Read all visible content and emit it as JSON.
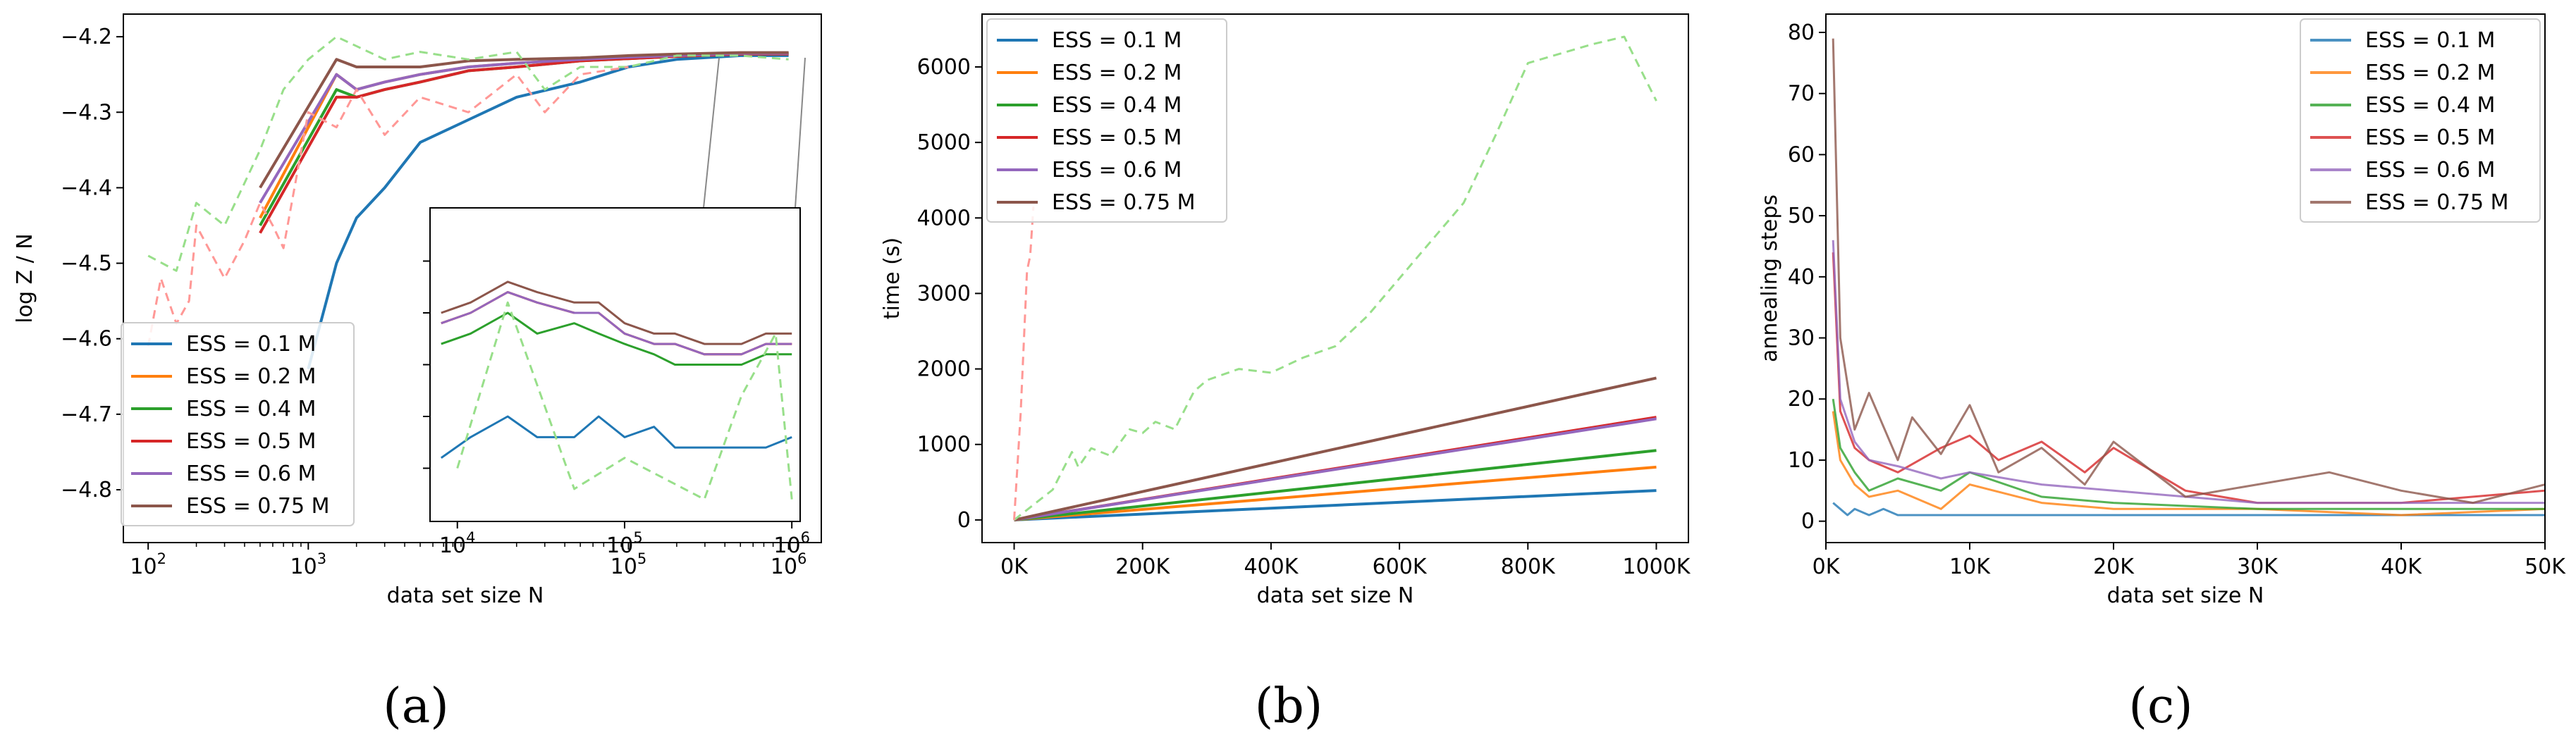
{
  "colors": {
    "c0.1": "#1f77b4",
    "c0.2": "#ff7f0e",
    "c0.4": "#2ca02c",
    "c0.5": "#d62728",
    "c0.6": "#9467bd",
    "c0.75": "#8c564b",
    "ref_green": "#98df8a",
    "ref_red": "#ff9896"
  },
  "legend_labels": [
    "ESS = 0.1 M",
    "ESS = 0.2 M",
    "ESS = 0.4 M",
    "ESS = 0.5 M",
    "ESS = 0.6 M",
    "ESS = 0.75 M"
  ],
  "captions": [
    "(a)",
    "(b)",
    "(c)"
  ],
  "chart_data": [
    {
      "panel": "(a)",
      "type": "line",
      "xscale": "log",
      "xlabel": "data set size N",
      "ylabel": "log Z / N",
      "xlim": [
        70,
        1600000
      ],
      "ylim": [
        -4.87,
        -4.17
      ],
      "yticks": [
        "−4.2",
        "−4.3",
        "−4.4",
        "−4.5",
        "−4.6",
        "−4.7",
        "−4.8"
      ],
      "xticks": [
        "10^2",
        "10^3",
        "10^5",
        "10^6"
      ],
      "legend_position": "lower-left",
      "series": [
        {
          "name": "ESS = 0.1 M",
          "x": [
            1000,
            1500,
            2000,
            3000,
            5000,
            10000,
            20000,
            50000,
            100000,
            200000,
            500000,
            1000000
          ],
          "y": [
            -4.64,
            -4.5,
            -4.44,
            -4.4,
            -4.34,
            -4.31,
            -4.28,
            -4.26,
            -4.24,
            -4.23,
            -4.225,
            -4.225
          ]
        },
        {
          "name": "ESS = 0.2 M",
          "x": [
            500,
            1500,
            2000,
            3000,
            5000,
            10000,
            20000,
            50000,
            100000,
            200000,
            500000,
            1000000
          ],
          "y": [
            -4.44,
            -4.25,
            -4.27,
            -4.26,
            -4.25,
            -4.24,
            -4.235,
            -4.23,
            -4.227,
            -4.225,
            -4.222,
            -4.222
          ]
        },
        {
          "name": "ESS = 0.4 M",
          "x": [
            500,
            1500,
            2000,
            3000,
            5000,
            10000,
            20000,
            50000,
            100000,
            200000,
            500000,
            1000000
          ],
          "y": [
            -4.45,
            -4.27,
            -4.28,
            -4.27,
            -4.26,
            -4.245,
            -4.24,
            -4.232,
            -4.229,
            -4.226,
            -4.223,
            -4.223
          ]
        },
        {
          "name": "ESS = 0.5 M",
          "x": [
            500,
            1500,
            2000,
            3000,
            5000,
            10000,
            20000,
            50000,
            100000,
            200000,
            500000,
            1000000
          ],
          "y": [
            -4.46,
            -4.28,
            -4.28,
            -4.27,
            -4.26,
            -4.245,
            -4.24,
            -4.232,
            -4.229,
            -4.226,
            -4.223,
            -4.223
          ]
        },
        {
          "name": "ESS = 0.6 M",
          "x": [
            500,
            1500,
            2000,
            3000,
            5000,
            10000,
            20000,
            50000,
            100000,
            200000,
            500000,
            1000000
          ],
          "y": [
            -4.42,
            -4.25,
            -4.27,
            -4.26,
            -4.25,
            -4.24,
            -4.235,
            -4.23,
            -4.227,
            -4.225,
            -4.222,
            -4.222
          ]
        },
        {
          "name": "ESS = 0.75 M",
          "x": [
            500,
            1500,
            2000,
            3000,
            5000,
            10000,
            20000,
            50000,
            100000,
            200000,
            500000,
            1000000
          ],
          "y": [
            -4.4,
            -4.23,
            -4.24,
            -4.24,
            -4.24,
            -4.232,
            -4.23,
            -4.228,
            -4.225,
            -4.223,
            -4.221,
            -4.221
          ]
        },
        {
          "name": "reference (green, dashed)",
          "x": [
            100,
            150,
            200,
            300,
            500,
            700,
            1000,
            1500,
            3000,
            5000,
            10000,
            20000,
            30000,
            50000,
            100000,
            200000,
            500000,
            1000000
          ],
          "y": [
            -4.49,
            -4.51,
            -4.42,
            -4.45,
            -4.35,
            -4.27,
            -4.23,
            -4.2,
            -4.23,
            -4.22,
            -4.23,
            -4.22,
            -4.27,
            -4.24,
            -4.24,
            -4.225,
            -4.225,
            -4.23
          ]
        },
        {
          "name": "reference (red, dashed)",
          "x": [
            100,
            120,
            150,
            180,
            200,
            300,
            400,
            500,
            600,
            700,
            1000,
            1500,
            2000,
            3000,
            5000,
            10000,
            20000,
            30000,
            50000,
            100000
          ],
          "y": [
            -4.61,
            -4.52,
            -4.58,
            -4.55,
            -4.45,
            -4.52,
            -4.47,
            -4.42,
            -4.45,
            -4.48,
            -4.3,
            -4.32,
            -4.27,
            -4.33,
            -4.28,
            -4.3,
            -4.25,
            -4.3,
            -4.25,
            -4.24
          ]
        }
      ],
      "inset": {
        "xscale": "log",
        "xlim": [
          7000,
          1100000
        ],
        "ylim": [
          -4.245,
          -4.215
        ],
        "xticks": [
          "10^4",
          "10^5",
          "10^6"
        ],
        "series": [
          {
            "name": "ESS = 0.1 M",
            "x": [
              8000,
              12000,
              20000,
              30000,
              50000,
              70000,
              100000,
              150000,
              200000,
              300000,
              500000,
              700000,
              1000000
            ],
            "y": [
              -4.239,
              -4.237,
              -4.235,
              -4.237,
              -4.237,
              -4.235,
              -4.237,
              -4.236,
              -4.238,
              -4.238,
              -4.238,
              -4.238,
              -4.237
            ]
          },
          {
            "name": "ESS = 0.2 M",
            "x": [
              8000,
              12000,
              20000,
              30000,
              50000,
              70000,
              100000,
              150000,
              200000,
              300000,
              500000,
              700000,
              1000000
            ],
            "y": [
              -4.226,
              -4.225,
              -4.223,
              -4.224,
              -4.225,
              -4.225,
              -4.227,
              -4.228,
              -4.228,
              -4.229,
              -4.229,
              -4.228,
              -4.228
            ]
          },
          {
            "name": "ESS = 0.4 M",
            "x": [
              8000,
              12000,
              20000,
              30000,
              50000,
              70000,
              100000,
              150000,
              200000,
              300000,
              500000,
              700000,
              1000000
            ],
            "y": [
              -4.228,
              -4.227,
              -4.225,
              -4.227,
              -4.226,
              -4.227,
              -4.228,
              -4.229,
              -4.23,
              -4.23,
              -4.23,
              -4.229,
              -4.229
            ]
          },
          {
            "name": "ESS = 0.5 M",
            "x": [
              8000,
              12000,
              20000,
              30000,
              50000,
              70000,
              100000,
              150000,
              200000,
              300000,
              500000,
              700000,
              1000000
            ],
            "y": [
              -4.226,
              -4.225,
              -4.223,
              -4.224,
              -4.225,
              -4.225,
              -4.227,
              -4.228,
              -4.228,
              -4.229,
              -4.229,
              -4.228,
              -4.228
            ]
          },
          {
            "name": "ESS = 0.6 M",
            "x": [
              8000,
              12000,
              20000,
              30000,
              50000,
              70000,
              100000,
              150000,
              200000,
              300000,
              500000,
              700000,
              1000000
            ],
            "y": [
              -4.226,
              -4.225,
              -4.223,
              -4.224,
              -4.225,
              -4.225,
              -4.227,
              -4.228,
              -4.228,
              -4.229,
              -4.229,
              -4.228,
              -4.228
            ]
          },
          {
            "name": "ESS = 0.75 M",
            "x": [
              8000,
              12000,
              20000,
              30000,
              50000,
              70000,
              100000,
              150000,
              200000,
              300000,
              500000,
              700000,
              1000000
            ],
            "y": [
              -4.225,
              -4.224,
              -4.222,
              -4.223,
              -4.224,
              -4.224,
              -4.226,
              -4.227,
              -4.227,
              -4.228,
              -4.228,
              -4.227,
              -4.227
            ]
          },
          {
            "name": "reference (green, dashed)",
            "x": [
              10000,
              20000,
              50000,
              100000,
              300000,
              500000,
              800000,
              1000000
            ],
            "y": [
              -4.24,
              -4.224,
              -4.242,
              -4.239,
              -4.243,
              -4.233,
              -4.227,
              -4.243
            ]
          }
        ]
      }
    },
    {
      "panel": "(b)",
      "type": "line",
      "xlabel": "data set size N",
      "ylabel": "time (s)",
      "xlim": [
        -50000,
        1050000
      ],
      "ylim": [
        -300,
        6700
      ],
      "xticks": [
        "0K",
        "200K",
        "400K",
        "600K",
        "800K",
        "1000K"
      ],
      "yticks": [
        "0",
        "1000",
        "2000",
        "3000",
        "4000",
        "5000",
        "6000"
      ],
      "legend_position": "upper-left",
      "series": [
        {
          "name": "ESS = 0.1 M",
          "x": [
            0,
            1000000
          ],
          "y": [
            0,
            390
          ]
        },
        {
          "name": "ESS = 0.2 M",
          "x": [
            0,
            1000000
          ],
          "y": [
            0,
            700
          ]
        },
        {
          "name": "ESS = 0.4 M",
          "x": [
            0,
            1000000
          ],
          "y": [
            0,
            920
          ]
        },
        {
          "name": "ESS = 0.5 M",
          "x": [
            0,
            1000000
          ],
          "y": [
            0,
            1360
          ]
        },
        {
          "name": "ESS = 0.6 M",
          "x": [
            0,
            1000000
          ],
          "y": [
            0,
            1340
          ]
        },
        {
          "name": "ESS = 0.75 M",
          "x": [
            0,
            1000000
          ],
          "y": [
            0,
            1880
          ]
        },
        {
          "name": "reference (green, dashed)",
          "x": [
            0,
            30000,
            60000,
            90000,
            100000,
            120000,
            150000,
            180000,
            200000,
            220000,
            250000,
            280000,
            300000,
            350000,
            400000,
            450000,
            500000,
            550000,
            600000,
            650000,
            700000,
            750000,
            800000,
            900000,
            950000,
            1000000
          ],
          "y": [
            0,
            200,
            400,
            900,
            700,
            950,
            850,
            1200,
            1150,
            1300,
            1200,
            1700,
            1850,
            2000,
            1950,
            2150,
            2300,
            2700,
            3200,
            3700,
            4200,
            5100,
            6050,
            6300,
            6400,
            5550
          ]
        },
        {
          "name": "reference (red, dashed)",
          "x": [
            0,
            10000,
            20000,
            25000,
            30000
          ],
          "y": [
            0,
            1400,
            3300,
            3500,
            4150
          ]
        }
      ]
    },
    {
      "panel": "(c)",
      "type": "line",
      "xlabel": "data set size N",
      "ylabel": "annealing steps",
      "xlim": [
        0,
        50000
      ],
      "ylim": [
        -3.5,
        83
      ],
      "xticks": [
        "0K",
        "10K",
        "20K",
        "30K",
        "40K",
        "50K"
      ],
      "yticks": [
        "0",
        "10",
        "20",
        "30",
        "40",
        "50",
        "60",
        "70",
        "80"
      ],
      "legend_position": "upper-right",
      "series": [
        {
          "name": "ESS = 0.1 M",
          "x": [
            500,
            1000,
            1500,
            2000,
            3000,
            4000,
            5000,
            50000
          ],
          "y": [
            3,
            2,
            1,
            2,
            1,
            2,
            1,
            1
          ]
        },
        {
          "name": "ESS = 0.2 M",
          "x": [
            500,
            1000,
            2000,
            3000,
            5000,
            8000,
            10000,
            15000,
            20000,
            30000,
            40000,
            50000
          ],
          "y": [
            18,
            10,
            6,
            4,
            5,
            2,
            6,
            3,
            2,
            2,
            1,
            2
          ]
        },
        {
          "name": "ESS = 0.4 M",
          "x": [
            500,
            1000,
            2000,
            3000,
            5000,
            8000,
            10000,
            15000,
            20000,
            30000,
            40000,
            50000
          ],
          "y": [
            20,
            12,
            8,
            5,
            7,
            5,
            8,
            4,
            3,
            2,
            2,
            2
          ]
        },
        {
          "name": "ESS = 0.5 M",
          "x": [
            500,
            1000,
            2000,
            3000,
            5000,
            8000,
            10000,
            12000,
            15000,
            18000,
            20000,
            25000,
            30000,
            40000,
            50000
          ],
          "y": [
            44,
            18,
            12,
            10,
            8,
            12,
            14,
            10,
            13,
            8,
            12,
            5,
            3,
            3,
            5
          ]
        },
        {
          "name": "ESS = 0.6 M",
          "x": [
            500,
            1000,
            2000,
            3000,
            5000,
            8000,
            10000,
            15000,
            20000,
            30000,
            40000,
            50000
          ],
          "y": [
            46,
            20,
            13,
            10,
            9,
            7,
            8,
            6,
            5,
            3,
            3,
            3
          ]
        },
        {
          "name": "ESS = 0.75 M",
          "x": [
            500,
            1000,
            2000,
            3000,
            5000,
            6000,
            8000,
            10000,
            12000,
            15000,
            18000,
            20000,
            25000,
            30000,
            35000,
            40000,
            45000,
            50000
          ],
          "y": [
            79,
            30,
            15,
            21,
            10,
            17,
            11,
            19,
            8,
            12,
            6,
            13,
            4,
            6,
            8,
            5,
            3,
            6
          ]
        }
      ]
    }
  ]
}
